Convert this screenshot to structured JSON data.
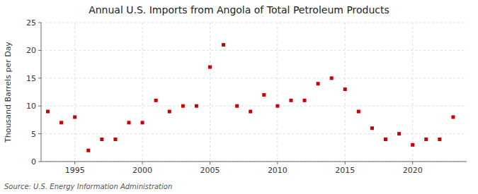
{
  "chart_data": {
    "type": "scatter",
    "title": "Annual U.S. Imports from Angola of Total Petroleum Products",
    "ylabel": "Thousand Barrels per Day",
    "source": "Source: U.S. Energy Information Administration",
    "x": [
      1993,
      1994,
      1995,
      1996,
      1997,
      1998,
      1999,
      2000,
      2001,
      2002,
      2003,
      2004,
      2005,
      2006,
      2007,
      2008,
      2009,
      2010,
      2011,
      2012,
      2013,
      2014,
      2015,
      2016,
      2017,
      2018,
      2019,
      2020,
      2021,
      2022,
      2023
    ],
    "values": [
      9,
      7,
      8,
      2,
      4,
      4,
      7,
      7,
      11,
      9,
      10,
      10,
      17,
      21,
      10,
      9,
      12,
      10,
      11,
      11,
      14,
      15,
      13,
      9,
      6,
      4,
      5,
      3,
      4,
      4,
      8
    ],
    "color": "#cc0000",
    "marker": "square",
    "xlim": [
      1992.5,
      2024
    ],
    "xticks": [
      1995,
      2000,
      2005,
      2010,
      2015,
      2020
    ],
    "ylim": [
      0,
      25
    ],
    "yticks": [
      0,
      5,
      10,
      15,
      20,
      25
    ],
    "grid": true
  }
}
